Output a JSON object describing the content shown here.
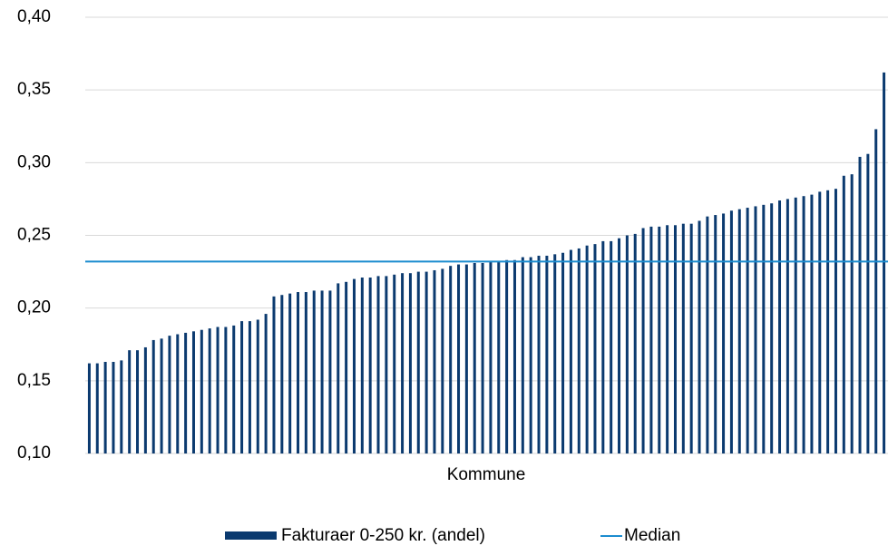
{
  "chart_data": {
    "type": "bar",
    "x_label": "Kommune",
    "categories": [
      null,
      null,
      null,
      null,
      null,
      null,
      null,
      null,
      null,
      null,
      null,
      null,
      null,
      null,
      null,
      null,
      null,
      null,
      null,
      null,
      null,
      null,
      null,
      null,
      null,
      null,
      null,
      null,
      null,
      null,
      null,
      null,
      null,
      null,
      null,
      null,
      null,
      null,
      null,
      null,
      null,
      null,
      null,
      null,
      null,
      null,
      null,
      null,
      null,
      null,
      null,
      null,
      null,
      null,
      null,
      null,
      null,
      null,
      null,
      null,
      null,
      null,
      null,
      null,
      null,
      null,
      null,
      null,
      null,
      null,
      null,
      null,
      null,
      null,
      null,
      null,
      null,
      null,
      null,
      null,
      null,
      null,
      null,
      null,
      null,
      null,
      null,
      null,
      null,
      null,
      null,
      null,
      null,
      null,
      null,
      null,
      null,
      null,
      null,
      null
    ],
    "series": [
      {
        "name": "Fakturaer 0-250 kr. (andel)",
        "color": "#0b3a6f",
        "values": [
          0.162,
          0.162,
          0.163,
          0.163,
          0.164,
          0.171,
          0.171,
          0.173,
          0.178,
          0.179,
          0.181,
          0.182,
          0.183,
          0.184,
          0.185,
          0.186,
          0.187,
          0.187,
          0.188,
          0.191,
          0.191,
          0.192,
          0.196,
          0.208,
          0.209,
          0.21,
          0.211,
          0.211,
          0.212,
          0.212,
          0.212,
          0.217,
          0.218,
          0.22,
          0.221,
          0.221,
          0.222,
          0.222,
          0.223,
          0.224,
          0.224,
          0.225,
          0.225,
          0.226,
          0.227,
          0.229,
          0.23,
          0.23,
          0.231,
          0.231,
          0.232,
          0.232,
          0.233,
          0.233,
          0.235,
          0.235,
          0.236,
          0.236,
          0.237,
          0.238,
          0.24,
          0.241,
          0.243,
          0.244,
          0.246,
          0.246,
          0.248,
          0.25,
          0.251,
          0.255,
          0.256,
          0.256,
          0.257,
          0.257,
          0.258,
          0.258,
          0.26,
          0.263,
          0.264,
          0.265,
          0.267,
          0.268,
          0.269,
          0.27,
          0.271,
          0.272,
          0.274,
          0.275,
          0.276,
          0.277,
          0.278,
          0.28,
          0.281,
          0.282,
          0.291,
          0.292,
          0.304,
          0.306,
          0.323,
          0.362
        ]
      }
    ],
    "median": {
      "name": "Median",
      "color": "#1b8ccf",
      "value": 0.232
    },
    "ylim": [
      0.1,
      0.4
    ],
    "yticks": [
      {
        "value": 0.1,
        "label": "0,10"
      },
      {
        "value": 0.15,
        "label": "0,15"
      },
      {
        "value": 0.2,
        "label": "0,20"
      },
      {
        "value": 0.25,
        "label": "0,25"
      },
      {
        "value": 0.3,
        "label": "0,30"
      },
      {
        "value": 0.35,
        "label": "0,35"
      },
      {
        "value": 0.4,
        "label": "0,40"
      }
    ],
    "grid": true
  }
}
